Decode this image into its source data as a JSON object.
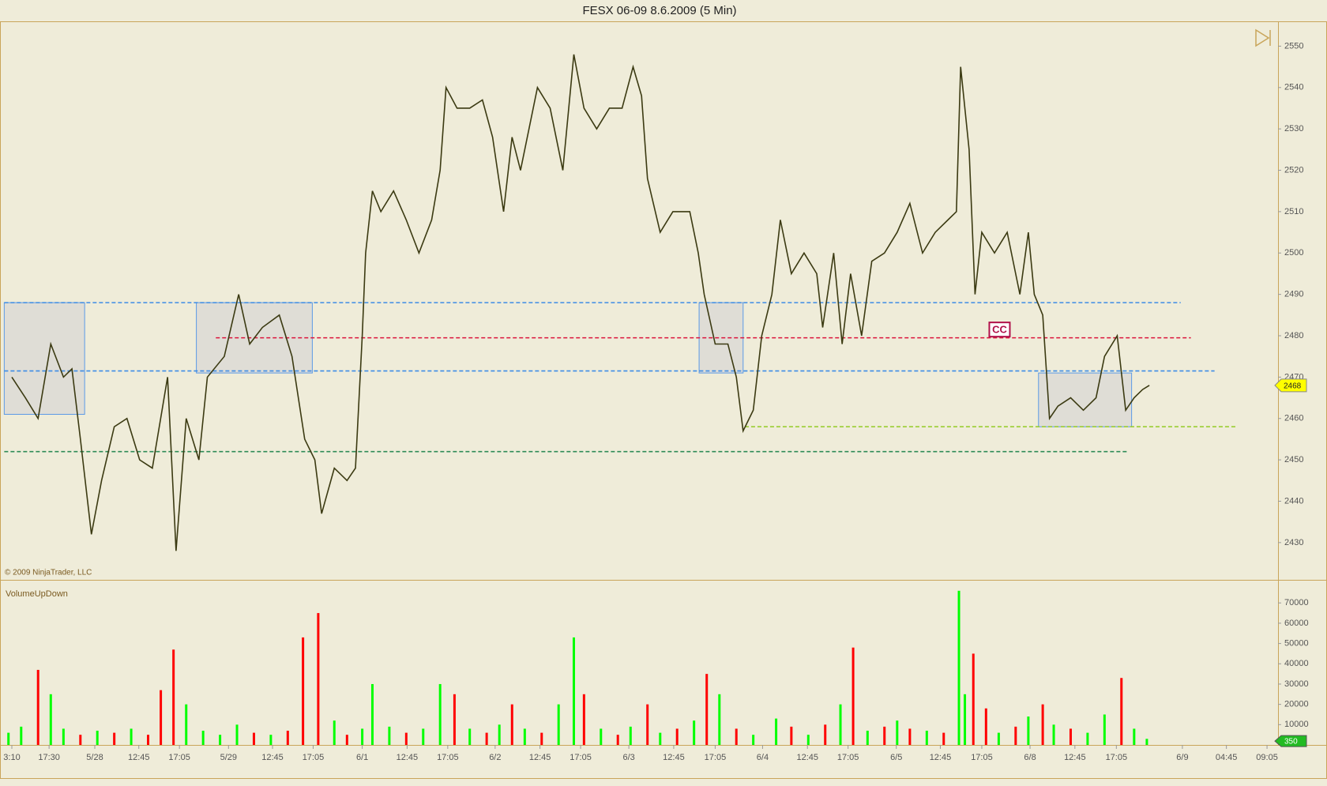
{
  "chart_data": [
    {
      "type": "line",
      "title": "FESX 06-09  8.6.2009 (5 Min)",
      "watermark": "© 2009 NinjaTrader, LLC",
      "xlim": [
        0,
        1510
      ],
      "ylim": [
        2421,
        2556
      ],
      "yticks": [
        2430,
        2440,
        2450,
        2460,
        2470,
        2480,
        2490,
        2500,
        2510,
        2520,
        2530,
        2540,
        2550
      ],
      "color": "#3b3a12",
      "last_value": 2468,
      "x": [
        14,
        30,
        45,
        60,
        75,
        85,
        95,
        108,
        120,
        135,
        150,
        165,
        180,
        198,
        208,
        220,
        235,
        245,
        265,
        282,
        295,
        310,
        330,
        345,
        360,
        372,
        380,
        395,
        410,
        420,
        428,
        432,
        440,
        450,
        465,
        480,
        495,
        510,
        520,
        527,
        540,
        555,
        570,
        582,
        595,
        605,
        615,
        625,
        635,
        650,
        665,
        678,
        690,
        705,
        720,
        735,
        748,
        758,
        765,
        780,
        795,
        815,
        825,
        832,
        845,
        860,
        870,
        878,
        890,
        900,
        912,
        922,
        935,
        950,
        965,
        972,
        985,
        995,
        1005,
        1018,
        1030,
        1045,
        1060,
        1075,
        1090,
        1105,
        1120,
        1130,
        1135,
        1145,
        1152,
        1160,
        1175,
        1190,
        1205,
        1215,
        1222,
        1232,
        1240,
        1250,
        1265,
        1280,
        1295,
        1305,
        1320,
        1330,
        1340,
        1350,
        1358
      ],
      "values": [
        2470,
        2465,
        2460,
        2478,
        2470,
        2472,
        2455,
        2432,
        2445,
        2458,
        2460,
        2450,
        2448,
        2470,
        2428,
        2460,
        2450,
        2470,
        2475,
        2490,
        2478,
        2482,
        2485,
        2475,
        2455,
        2450,
        2437,
        2448,
        2445,
        2448,
        2480,
        2500,
        2515,
        2510,
        2515,
        2508,
        2500,
        2508,
        2520,
        2540,
        2535,
        2535,
        2537,
        2528,
        2510,
        2528,
        2520,
        2530,
        2540,
        2535,
        2520,
        2548,
        2535,
        2530,
        2535,
        2535,
        2545,
        2538,
        2518,
        2505,
        2510,
        2510,
        2500,
        2490,
        2478,
        2478,
        2470,
        2457,
        2462,
        2480,
        2490,
        2508,
        2495,
        2500,
        2495,
        2482,
        2500,
        2478,
        2495,
        2480,
        2498,
        2500,
        2505,
        2512,
        2500,
        2505,
        2508,
        2510,
        2545,
        2525,
        2490,
        2505,
        2500,
        2505,
        2490,
        2505,
        2490,
        2485,
        2460,
        2463,
        2465,
        2462,
        2465,
        2475,
        2480,
        2462,
        2465,
        2467,
        2468
      ],
      "levels": [
        {
          "color": "#3d8ce6",
          "value": 2488,
          "x": [
            5,
            1395
          ]
        },
        {
          "color": "#3d8ce6",
          "value": 2471.5,
          "x": [
            5,
            1435
          ]
        },
        {
          "color": "#dc143c",
          "value": 2479.5,
          "x": [
            255,
            1407
          ]
        },
        {
          "color": "#2e8b57",
          "value": 2452,
          "x": [
            5,
            1333
          ]
        },
        {
          "color": "#9acd32",
          "value": 2458,
          "x": [
            880,
            1460
          ]
        }
      ],
      "boxes": [
        {
          "x": [
            5,
            100
          ],
          "y": [
            2461,
            2488
          ]
        },
        {
          "x": [
            232,
            369
          ],
          "y": [
            2471,
            2488
          ]
        },
        {
          "x": [
            826,
            878
          ],
          "y": [
            2471,
            2488
          ]
        },
        {
          "x": [
            1227,
            1337
          ],
          "y": [
            2458,
            2471
          ]
        }
      ],
      "annotation": {
        "text": "CC",
        "x": 1181,
        "y": 2481.5
      }
    },
    {
      "type": "bar",
      "title": "VolumeUpDown",
      "xlim": [
        0,
        1510
      ],
      "ylim": [
        0,
        81000
      ],
      "yticks": [
        10000,
        20000,
        30000,
        40000,
        50000,
        60000,
        70000
      ],
      "last_value": 350,
      "xticks": [
        {
          "value": 14,
          "label": "3:10"
        },
        {
          "value": 58,
          "label": "17:30"
        },
        {
          "value": 112,
          "label": "5/28"
        },
        {
          "value": 164,
          "label": "12:45"
        },
        {
          "value": 212,
          "label": "17:05"
        },
        {
          "value": 270,
          "label": "5/29"
        },
        {
          "value": 322,
          "label": "12:45"
        },
        {
          "value": 370,
          "label": "17:05"
        },
        {
          "value": 428,
          "label": "6/1"
        },
        {
          "value": 481,
          "label": "12:45"
        },
        {
          "value": 529,
          "label": "17:05"
        },
        {
          "value": 585,
          "label": "6/2"
        },
        {
          "value": 638,
          "label": "12:45"
        },
        {
          "value": 686,
          "label": "17:05"
        },
        {
          "value": 743,
          "label": "6/3"
        },
        {
          "value": 796,
          "label": "12:45"
        },
        {
          "value": 845,
          "label": "17:05"
        },
        {
          "value": 901,
          "label": "6/4"
        },
        {
          "value": 954,
          "label": "12:45"
        },
        {
          "value": 1002,
          "label": "17:05"
        },
        {
          "value": 1059,
          "label": "6/5"
        },
        {
          "value": 1111,
          "label": "12:45"
        },
        {
          "value": 1160,
          "label": "17:05"
        },
        {
          "value": 1217,
          "label": "6/8"
        },
        {
          "value": 1270,
          "label": "12:45"
        },
        {
          "value": 1319,
          "label": "17:05"
        },
        {
          "value": 1397,
          "label": "6/9"
        },
        {
          "value": 1449,
          "label": "04:45"
        },
        {
          "value": 1497,
          "label": "09:05"
        }
      ],
      "x": [
        10,
        25,
        45,
        60,
        75,
        95,
        115,
        135,
        155,
        175,
        190,
        205,
        220,
        240,
        260,
        280,
        300,
        320,
        340,
        358,
        376,
        395,
        410,
        428,
        440,
        460,
        480,
        500,
        520,
        537,
        555,
        575,
        590,
        605,
        620,
        640,
        660,
        678,
        690,
        710,
        730,
        745,
        765,
        780,
        800,
        820,
        835,
        850,
        870,
        890,
        917,
        935,
        955,
        975,
        993,
        1008,
        1025,
        1045,
        1060,
        1075,
        1095,
        1115,
        1133,
        1140,
        1150,
        1165,
        1180,
        1200,
        1215,
        1232,
        1245,
        1265,
        1285,
        1305,
        1325,
        1340,
        1355
      ],
      "series": [
        {
          "color": "#00ff00",
          "values": [
            6000,
            9000,
            null,
            25000,
            8000,
            null,
            7000,
            null,
            8000,
            null,
            null,
            null,
            20000,
            7000,
            5000,
            10000,
            null,
            5000,
            null,
            null,
            null,
            12000,
            null,
            8000,
            30000,
            9000,
            null,
            8000,
            30000,
            null,
            8000,
            null,
            10000,
            null,
            8000,
            null,
            20000,
            53000,
            null,
            8000,
            null,
            9000,
            null,
            6000,
            null,
            12000,
            null,
            25000,
            null,
            5000,
            13000,
            null,
            5000,
            null,
            20000,
            null,
            7000,
            null,
            12000,
            null,
            7000,
            null,
            76000,
            25000,
            null,
            null,
            6000,
            null,
            14000,
            null,
            10000,
            null,
            6000,
            15000,
            null,
            8000,
            3000
          ]
        },
        {
          "color": "#ff0000",
          "values": [
            null,
            null,
            37000,
            null,
            null,
            5000,
            null,
            6000,
            null,
            5000,
            27000,
            47000,
            null,
            null,
            null,
            null,
            6000,
            null,
            7000,
            53000,
            65000,
            null,
            5000,
            null,
            null,
            null,
            6000,
            null,
            null,
            25000,
            null,
            6000,
            null,
            20000,
            null,
            6000,
            null,
            null,
            25000,
            null,
            5000,
            null,
            20000,
            null,
            8000,
            null,
            35000,
            null,
            8000,
            null,
            null,
            9000,
            null,
            10000,
            null,
            48000,
            null,
            9000,
            null,
            8000,
            null,
            6000,
            null,
            null,
            45000,
            18000,
            null,
            9000,
            null,
            20000,
            null,
            8000,
            null,
            null,
            33000,
            null,
            null
          ]
        }
      ]
    }
  ]
}
